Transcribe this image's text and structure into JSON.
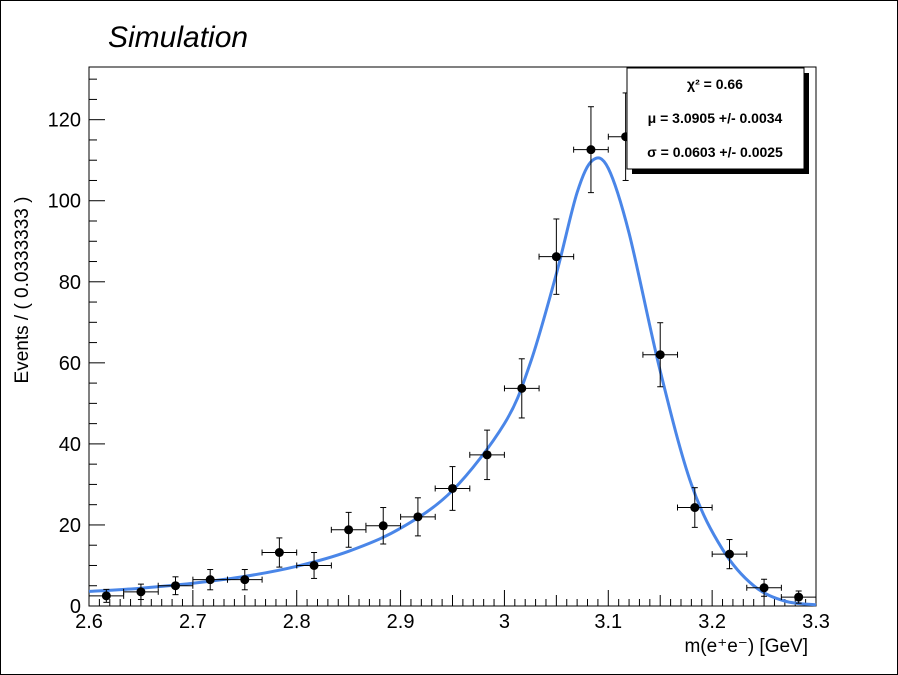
{
  "chart_data": {
    "type": "scatter",
    "title": "Simulation",
    "xlabel": "m(e⁺e⁻) [GeV]",
    "ylabel": "Events / ( 0.0333333 )",
    "xlim": [
      2.6,
      3.3
    ],
    "ylim": [
      0,
      133
    ],
    "x_ticks": [
      "2.6",
      "2.7",
      "2.8",
      "2.9",
      "3",
      "3.1",
      "3.2",
      "3.3"
    ],
    "y_ticks": [
      "0",
      "20",
      "40",
      "60",
      "80",
      "100",
      "120"
    ],
    "bin_width": 0.0333333,
    "points": [
      {
        "x": 2.6167,
        "y": 2.5,
        "err": 1.6
      },
      {
        "x": 2.65,
        "y": 3.5,
        "err": 1.9
      },
      {
        "x": 2.6833,
        "y": 5.0,
        "err": 2.2
      },
      {
        "x": 2.7167,
        "y": 6.5,
        "err": 2.5
      },
      {
        "x": 2.75,
        "y": 6.5,
        "err": 2.5
      },
      {
        "x": 2.7833,
        "y": 13.2,
        "err": 3.6
      },
      {
        "x": 2.8167,
        "y": 10.0,
        "err": 3.2
      },
      {
        "x": 2.85,
        "y": 18.8,
        "err": 4.3
      },
      {
        "x": 2.8833,
        "y": 19.8,
        "err": 4.5
      },
      {
        "x": 2.9167,
        "y": 22.0,
        "err": 4.7
      },
      {
        "x": 2.95,
        "y": 29.0,
        "err": 5.4
      },
      {
        "x": 2.9833,
        "y": 37.3,
        "err": 6.1
      },
      {
        "x": 3.0167,
        "y": 53.7,
        "err": 7.3
      },
      {
        "x": 3.05,
        "y": 86.2,
        "err": 9.3
      },
      {
        "x": 3.0833,
        "y": 112.6,
        "err": 10.6
      },
      {
        "x": 3.1167,
        "y": 115.8,
        "err": 10.8
      },
      {
        "x": 3.15,
        "y": 62.0,
        "err": 7.9
      },
      {
        "x": 3.1833,
        "y": 24.3,
        "err": 4.9
      },
      {
        "x": 3.2167,
        "y": 12.8,
        "err": 3.6
      },
      {
        "x": 3.25,
        "y": 4.5,
        "err": 2.1
      },
      {
        "x": 3.2833,
        "y": 2.2,
        "err": 1.5
      }
    ],
    "fit_curve": {
      "color": "#4a86e8",
      "x": [
        2.6,
        2.65,
        2.7,
        2.75,
        2.8,
        2.85,
        2.9,
        2.95,
        3.0,
        3.025,
        3.05,
        3.07,
        3.085,
        3.1,
        3.12,
        3.15,
        3.18,
        3.21,
        3.24,
        3.27,
        3.3
      ],
      "y": [
        3.6,
        4.4,
        5.6,
        7.3,
        9.8,
        13.5,
        19.2,
        28.5,
        45.0,
        60.0,
        82.0,
        102.0,
        110.0,
        108.0,
        92.0,
        58.0,
        30.0,
        14.0,
        5.0,
        1.2,
        0.3
      ]
    },
    "stats": {
      "chi2": "χ² = 0.66",
      "mu": "μ = 3.0905 +/- 0.0034",
      "sigma": "σ = 0.0603 +/- 0.0025"
    }
  }
}
